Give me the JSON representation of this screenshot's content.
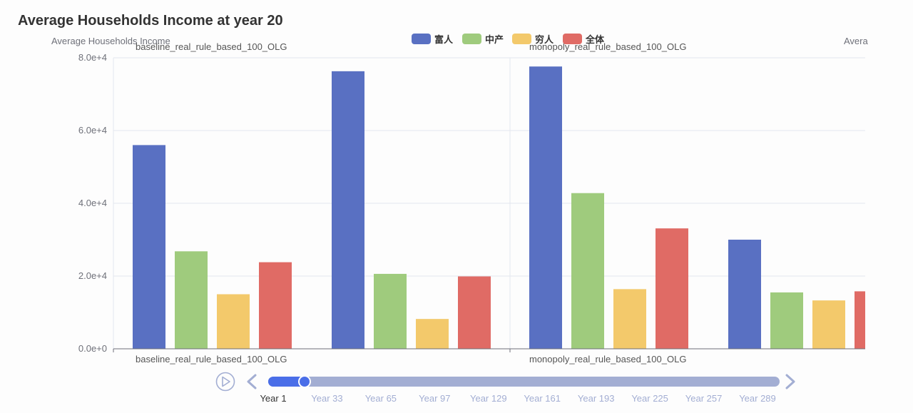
{
  "title": "Average Households Income at year 20",
  "colors": {
    "rich": "#5970c2",
    "middle": "#9fcb7d",
    "poor": "#f3c96b",
    "all": "#e06b65"
  },
  "timeline": {
    "labels": [
      "Year 1",
      "Year 33",
      "Year 65",
      "Year 97",
      "Year 129",
      "Year 161",
      "Year 193",
      "Year 225",
      "Year 257",
      "Year 289"
    ],
    "current_index": 0
  },
  "chart_data": {
    "type": "bar",
    "title": "Average Households Income at year 20",
    "ylabel": "Average Households Income",
    "ylabel_right_partial": "Avera",
    "ylim": [
      0,
      80000
    ],
    "yticks": [
      0,
      20000,
      40000,
      60000,
      80000
    ],
    "ytick_labels": [
      "0.0e+0",
      "2.0e+4",
      "4.0e+4",
      "6.0e+4",
      "8.0e+4"
    ],
    "grid": true,
    "legend_position": "top-center",
    "series_names": [
      "富人",
      "中产",
      "穷人",
      "全体"
    ],
    "panels": [
      {
        "label": "baseline_real_rule_based_100_OLG",
        "groups": [
          {
            "values": [
              56000,
              26800,
              15000,
              23800
            ]
          },
          {
            "values": [
              76300,
              20600,
              8200,
              19900
            ]
          }
        ]
      },
      {
        "label": "monopoly_real_rule_based_100_OLG",
        "groups": [
          {
            "values": [
              77600,
              42800,
              16400,
              33100
            ]
          },
          {
            "values": [
              30000,
              15500,
              13300,
              15800
            ]
          }
        ]
      }
    ]
  }
}
